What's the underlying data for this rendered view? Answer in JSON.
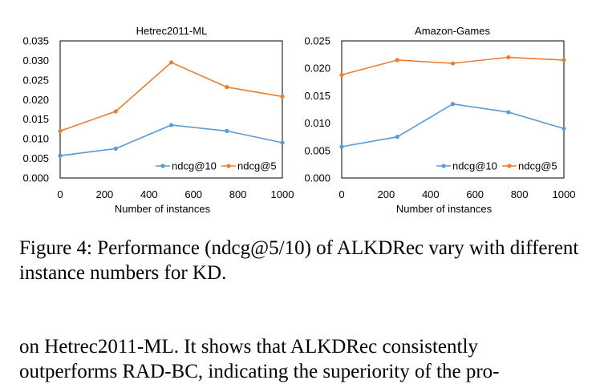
{
  "chart_data": [
    {
      "type": "line",
      "title": "Hetrec2011-ML",
      "xlabel": "Number of instances",
      "ylabel": "",
      "x": [
        0,
        250,
        500,
        750,
        1000
      ],
      "xlim": [
        0,
        1000
      ],
      "ylim": [
        0,
        0.035
      ],
      "xticks": [
        "0",
        "200",
        "400",
        "600",
        "800",
        "1000"
      ],
      "yticks": [
        "0.000",
        "0.005",
        "0.010",
        "0.015",
        "0.020",
        "0.025",
        "0.030",
        "0.035"
      ],
      "grid": false,
      "legend_position": "bottom-right",
      "series": [
        {
          "name": "ndcg@10",
          "values": [
            0.0057,
            0.0075,
            0.0135,
            0.012,
            0.009
          ]
        },
        {
          "name": "ndcg@5",
          "values": [
            0.012,
            0.017,
            0.0295,
            0.0232,
            0.0208
          ]
        }
      ]
    },
    {
      "type": "line",
      "title": "Amazon-Games",
      "xlabel": "Number of instances",
      "ylabel": "",
      "x": [
        0,
        250,
        500,
        750,
        1000
      ],
      "xlim": [
        0,
        1000
      ],
      "ylim": [
        0,
        0.025
      ],
      "xticks": [
        "0",
        "200",
        "400",
        "600",
        "800",
        "1000"
      ],
      "yticks": [
        "0.000",
        "0.005",
        "0.010",
        "0.015",
        "0.020",
        "0.025"
      ],
      "grid": false,
      "legend_position": "bottom-right",
      "series": [
        {
          "name": "ndcg@10",
          "values": [
            0.0057,
            0.0075,
            0.0135,
            0.012,
            0.009
          ]
        },
        {
          "name": "ndcg@5",
          "values": [
            0.0188,
            0.0215,
            0.0209,
            0.022,
            0.0215
          ]
        }
      ]
    }
  ],
  "colors": {
    "ndcg@10": "#5b9bd5",
    "ndcg@5": "#ed7d31",
    "axis": "#000000"
  },
  "caption": "Figure 4: Performance (ndcg@5/10) of ALKDRec vary with different instance numbers for KD.",
  "body": {
    "line1": "on Hetrec2011-ML. It shows that ALKDRec consistently",
    "line2": "outperforms RAD-BC, indicating the superiority of the pro-"
  }
}
